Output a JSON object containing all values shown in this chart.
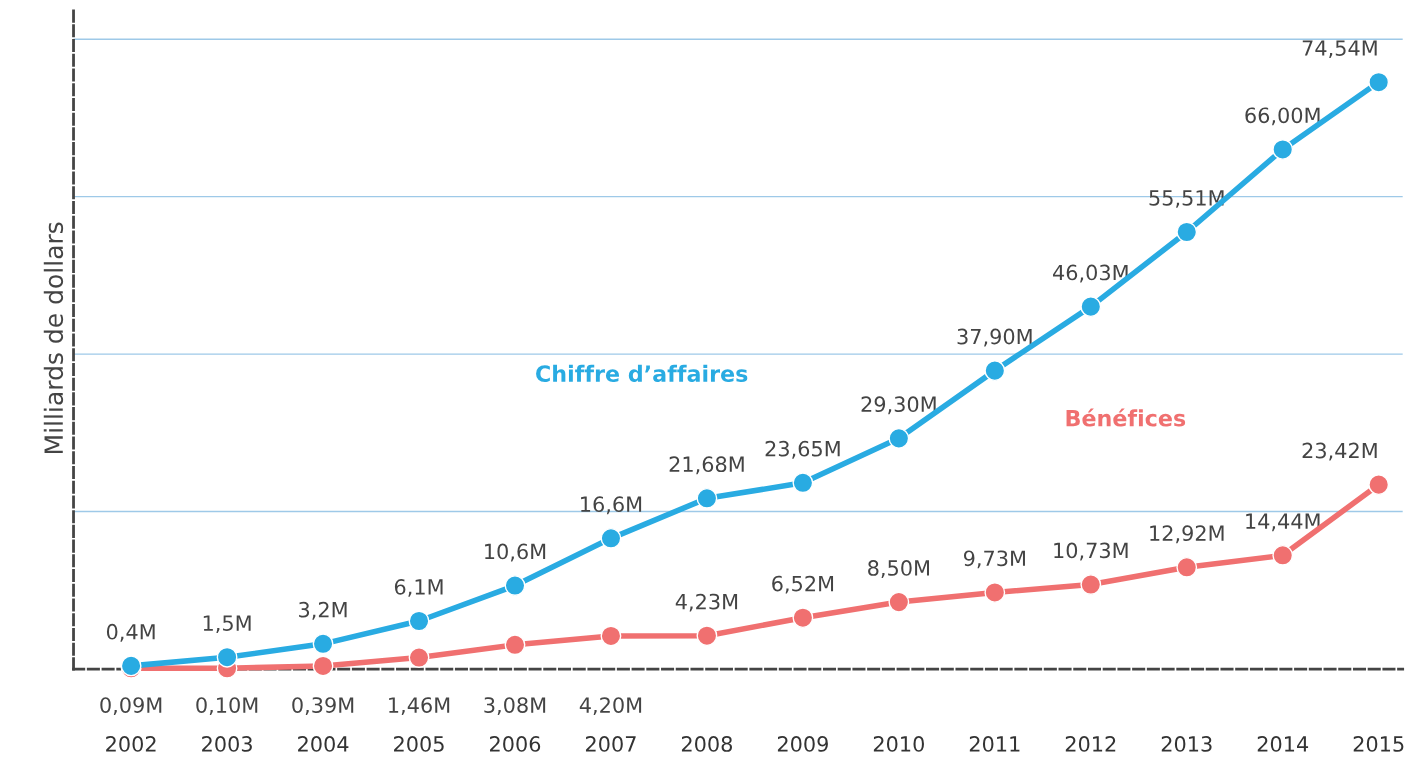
{
  "chart_data": {
    "type": "line",
    "ylabel": "Milliards de dollars",
    "categories": [
      "2002",
      "2003",
      "2004",
      "2005",
      "2006",
      "2007",
      "2008",
      "2009",
      "2010",
      "2011",
      "2012",
      "2013",
      "2014",
      "2015"
    ],
    "series": [
      {
        "name": "Chiffre d’affaires",
        "color": "#29abe2",
        "values": [
          0.4,
          1.5,
          3.2,
          6.1,
          10.6,
          16.6,
          21.68,
          23.65,
          29.3,
          37.9,
          46.03,
          55.51,
          66.0,
          74.54
        ],
        "value_labels": [
          "0,4M",
          "1,5M",
          "3,2M",
          "6,1M",
          "10,6M",
          "16,6M",
          "21,68M",
          "23,65M",
          "29,30M",
          "37,90M",
          "46,03M",
          "55,51M",
          "66,00M",
          "74,54M"
        ]
      },
      {
        "name": "Bénéfices",
        "color": "#f07070",
        "values": [
          0.09,
          0.1,
          0.39,
          1.46,
          3.08,
          4.2,
          4.23,
          6.52,
          8.5,
          9.73,
          10.73,
          12.92,
          14.44,
          23.42
        ],
        "value_labels": [
          "0,09M",
          "0,10M",
          "0,39M",
          "1,46M",
          "3,08M",
          "4,20M",
          "4,23M",
          "6,52M",
          "8,50M",
          "9,73M",
          "10,73M",
          "12,92M",
          "14,44M",
          "23,42M"
        ]
      }
    ],
    "ylim": [
      0,
      84
    ],
    "yticks": [
      {
        "value": 20,
        "label": null
      },
      {
        "value": 40,
        "label": null
      },
      {
        "value": 60,
        "label": null
      },
      {
        "value": 80,
        "label": null
      }
    ],
    "tick_labels": "x",
    "grid": "y",
    "marker": "circle",
    "line_style": "solid"
  }
}
